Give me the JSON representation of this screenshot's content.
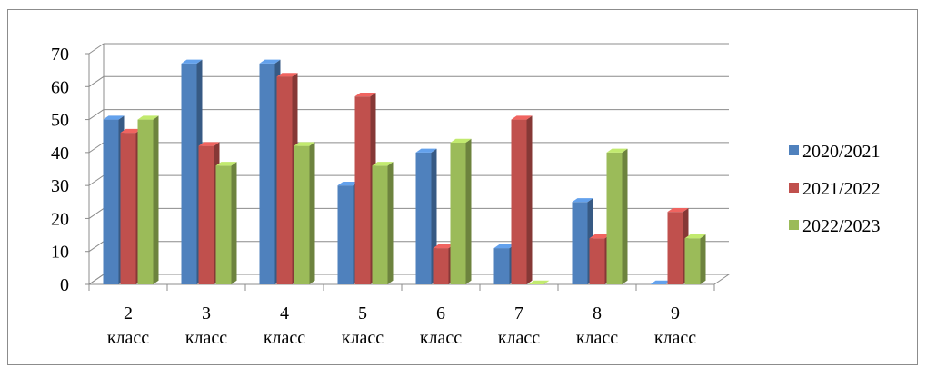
{
  "chart_data": {
    "type": "bar",
    "categories": [
      [
        "2",
        "класс"
      ],
      [
        "3",
        "класс"
      ],
      [
        "4",
        "класс"
      ],
      [
        "5",
        "класс"
      ],
      [
        "6",
        "класс"
      ],
      [
        "7",
        "класс"
      ],
      [
        "8",
        "класс"
      ],
      [
        "9",
        "класс"
      ]
    ],
    "series": [
      {
        "name": "2020/2021",
        "color": "#4f81bd",
        "values": [
          50,
          67,
          67,
          30,
          40,
          11,
          25,
          0
        ]
      },
      {
        "name": "2021/2022",
        "color": "#c0504d",
        "values": [
          46,
          42,
          63,
          57,
          11,
          50,
          14,
          22
        ]
      },
      {
        "name": "2022/2023",
        "color": "#9bbb59",
        "values": [
          50,
          36,
          42,
          36,
          43,
          0,
          40,
          14
        ]
      }
    ],
    "ylim": [
      0,
      70
    ],
    "yticks": [
      "0",
      "10",
      "20",
      "30",
      "40",
      "50",
      "60",
      "70"
    ],
    "grid": true,
    "legend_position": "right",
    "style": "3d-clustered-columns"
  }
}
